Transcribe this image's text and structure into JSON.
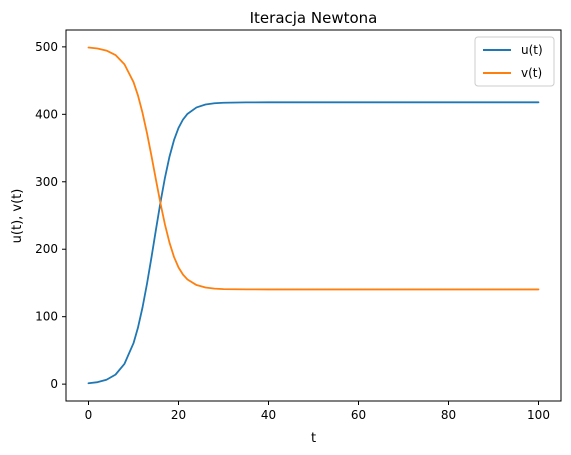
{
  "chart_data": {
    "type": "line",
    "title": "Iteracja Newtona",
    "xlabel": "t",
    "ylabel": "u(t), v(t)",
    "xlim": [
      -5,
      105
    ],
    "ylim": [
      -25,
      525
    ],
    "xticks": [
      0,
      20,
      40,
      60,
      80,
      100
    ],
    "yticks": [
      0,
      100,
      200,
      300,
      400,
      500
    ],
    "grid": false,
    "legend_position": "top-right",
    "x": [
      0,
      2,
      4,
      6,
      8,
      10,
      11,
      12,
      13,
      14,
      15,
      16,
      17,
      18,
      19,
      20,
      21,
      22,
      24,
      26,
      28,
      30,
      35,
      40,
      50,
      60,
      70,
      80,
      90,
      100
    ],
    "series": [
      {
        "name": "u(t)",
        "color": "#1f77b4",
        "values": [
          1.3,
          2.9,
          6.5,
          14.1,
          30.2,
          60.7,
          84.0,
          113.6,
          148.8,
          188.2,
          229.5,
          269.8,
          306.3,
          337.3,
          361.8,
          379.8,
          392.3,
          400.7,
          410.2,
          414.5,
          416.4,
          417.2,
          417.7,
          417.8,
          417.8,
          417.8,
          417.8,
          417.8,
          417.8,
          417.8
        ]
      },
      {
        "name": "v(t)",
        "color": "#ff7f0e",
        "values": [
          499.0,
          497.6,
          494.5,
          487.9,
          474.0,
          447.8,
          427.8,
          402.3,
          372.0,
          338.1,
          302.5,
          267.8,
          236.4,
          209.7,
          188.6,
          173.1,
          162.3,
          155.1,
          146.9,
          143.2,
          141.6,
          140.9,
          140.5,
          140.4,
          140.4,
          140.4,
          140.4,
          140.4,
          140.4,
          140.4
        ]
      }
    ]
  }
}
